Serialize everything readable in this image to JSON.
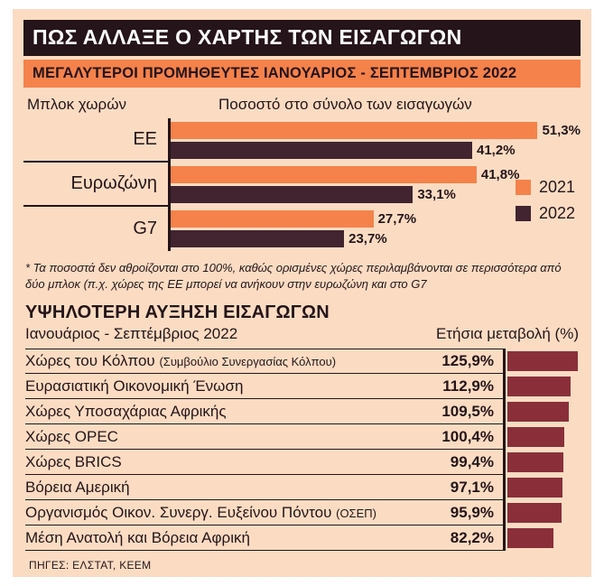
{
  "header": {
    "title": "ΠΩΣ ΑΛΛΑΞΕ Ο ΧΑΡΤΗΣ ΤΩΝ ΕΙΣΑΓΩΓΩΝ",
    "subtitle": "ΜΕΓΑΛΥΤΕΡΟΙ ΠΡΟΜΗΘΕΥΤΕΣ ΙΑΝΟΥΑΡΙΟΣ - ΣΕΠΤΕΜΒΡΙΟΣ 2022"
  },
  "colors": {
    "background": "#fbdcc3",
    "banner_dark": "#251419",
    "accent_orange": "#f5824b",
    "bar_2021": "#f5824b",
    "bar_2022": "#412430",
    "bar_growth": "#8a2f3a",
    "text_dark": "#251419"
  },
  "chart_data": [
    {
      "type": "bar",
      "orientation": "horizontal",
      "category_header": "Μπλοκ χωρών",
      "value_header": "Ποσοστό στο σύνολο των εισαγωγών",
      "categories": [
        "ΕΕ",
        "Ευρωζώνη",
        "G7"
      ],
      "series": [
        {
          "name": "2021",
          "color": "#f5824b",
          "values": [
            51.3,
            41.8,
            27.7
          ],
          "labels": [
            "51,3%",
            "41,8%",
            "27,7%"
          ]
        },
        {
          "name": "2022",
          "color": "#412430",
          "values": [
            41.2,
            33.1,
            23.7
          ],
          "labels": [
            "41,2%",
            "33,1%",
            "23,7%"
          ]
        }
      ],
      "xlim": [
        0,
        56
      ],
      "grid": false,
      "legend_position": "right",
      "footnote": "* Τα ποσοστά δεν αθροίζονται στο 100%, καθώς ορισμένες χώρες περιλαμβάνονται σε περισσότερα από δύο μπλοκ (π.χ. χώρες της ΕΕ μπορεί να ανήκουν στην ευρωζώνη και στο G7"
    },
    {
      "type": "bar",
      "orientation": "horizontal",
      "title": "ΥΨΗΛΟΤΕΡΗ ΑΥΞΗΣΗ ΕΙΣΑΓΩΓΩΝ",
      "subtitle": "Ιανουάριος - Σεπτέμβριος 2022",
      "value_header": "Ετήσια μεταβολή (%)",
      "xlim": [
        0,
        130
      ],
      "grid": false,
      "rows": [
        {
          "label": "Χώρες του Κόλπου",
          "label_small": "(Συμβούλιο Συνεργασίας Κόλπου)",
          "value": 125.9,
          "label_value": "125,9%"
        },
        {
          "label": "Ευρασιατική Οικονομική Ένωση",
          "label_small": "",
          "value": 112.9,
          "label_value": "112,9%"
        },
        {
          "label": "Χώρες Υποσαχάριας Αφρικής",
          "label_small": "",
          "value": 109.5,
          "label_value": "109,5%"
        },
        {
          "label": "Χώρες OPEC",
          "label_small": "",
          "value": 100.4,
          "label_value": "100,4%"
        },
        {
          "label": "Χώρες BRICS",
          "label_small": "",
          "value": 99.4,
          "label_value": "99,4%"
        },
        {
          "label": "Βόρεια Αμερική",
          "label_small": "",
          "value": 97.1,
          "label_value": "97,1%"
        },
        {
          "label": "Οργανισμός Οικον. Συνεργ. Ευξείνου Πόντου",
          "label_small": "(ΟΣΕΠ)",
          "value": 95.9,
          "label_value": "95,9%"
        },
        {
          "label": "Μέση Ανατολή και Βόρεια Αφρική",
          "label_small": "",
          "value": 82.2,
          "label_value": "82,2%"
        }
      ]
    }
  ],
  "source": "ΠΗΓΕΣ: ΕΛΣΤΑΤ, ΚΕΕΜ"
}
